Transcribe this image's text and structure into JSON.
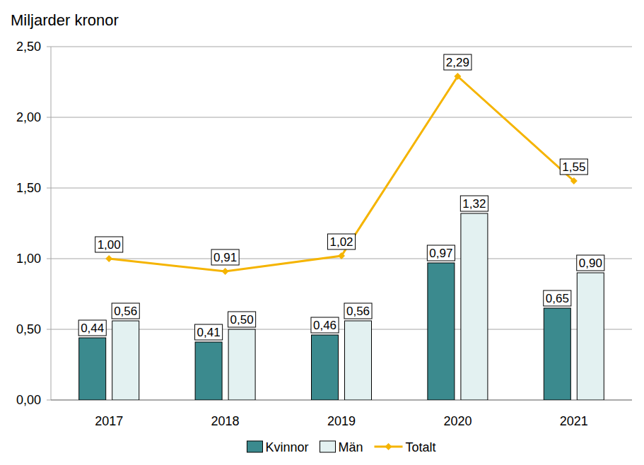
{
  "chart_data": {
    "type": "bar",
    "y_label": "Miljarder kronor",
    "categories": [
      "2017",
      "2018",
      "2019",
      "2020",
      "2021"
    ],
    "series": [
      {
        "name": "Kvinnor",
        "type": "bar",
        "color": "#3b8a8e",
        "values": [
          0.44,
          0.41,
          0.46,
          0.97,
          0.65
        ],
        "value_labels": [
          "0,44",
          "0,41",
          "0,46",
          "0,97",
          "0,65"
        ]
      },
      {
        "name": "Män",
        "type": "bar",
        "color": "#e3f1f1",
        "values": [
          0.56,
          0.5,
          0.56,
          1.32,
          0.9
        ],
        "value_labels": [
          "0,56",
          "0,50",
          "0,56",
          "1,32",
          "0,90"
        ]
      },
      {
        "name": "Totalt",
        "type": "line",
        "color": "#f5b400",
        "marker": "diamond",
        "values": [
          1.0,
          0.91,
          1.02,
          2.29,
          1.55
        ],
        "value_labels": [
          "1,00",
          "0,91",
          "1,02",
          "2,29",
          "1,55"
        ]
      }
    ],
    "ylim": [
      0,
      2.5
    ],
    "yticks": [
      {
        "value": 0,
        "label": "0,00"
      },
      {
        "value": 0.5,
        "label": "0,50"
      },
      {
        "value": 1,
        "label": "1,00"
      },
      {
        "value": 1.5,
        "label": "1,50"
      },
      {
        "value": 2,
        "label": "2,00"
      },
      {
        "value": 2.5,
        "label": "2,50"
      }
    ],
    "grid": true,
    "data_labels": true,
    "legend": "bottom"
  }
}
